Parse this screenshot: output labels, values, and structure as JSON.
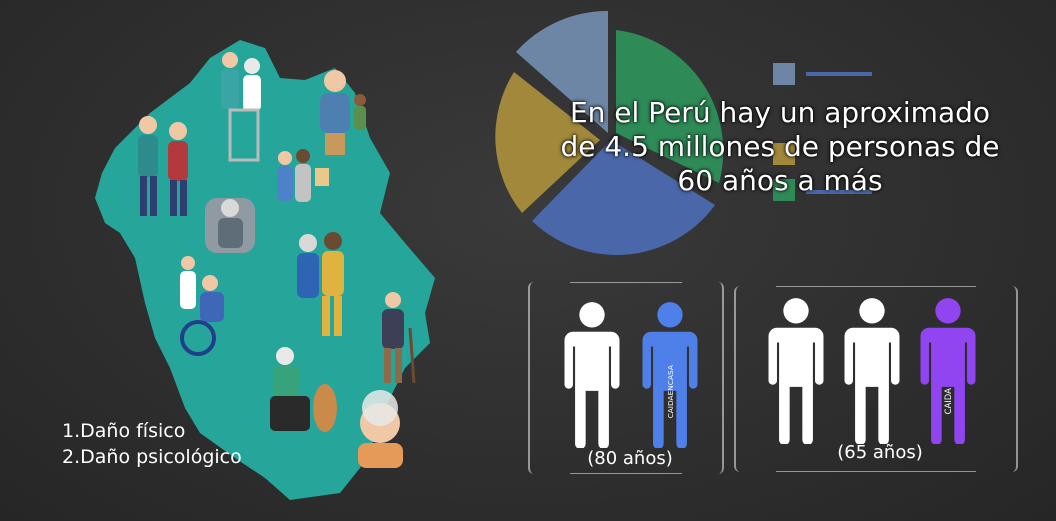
{
  "headline": {
    "lines": [
      "En el Perú hay un aproximado",
      "de 4.5 millones de personas de",
      "60 años a más"
    ]
  },
  "damage_list": {
    "items": [
      "1.Daño físico",
      "2.Daño psicológico"
    ]
  },
  "groups": {
    "group_80": {
      "age_label": "(80 años)",
      "highlight_label": "CAIDAENCASA",
      "highlight_color": "#4f7fe8"
    },
    "group_65": {
      "age_label": "(65 años)",
      "highlight_label": "CAIDA",
      "highlight_color": "#9145f0"
    }
  },
  "colors": {
    "background": "#303030",
    "map_teal": "#26a69a",
    "pie_blue_gray": "#6d86a6",
    "pie_green": "#2e8b57",
    "pie_blue": "#4a67a9",
    "pie_olive": "#a1883b"
  }
}
